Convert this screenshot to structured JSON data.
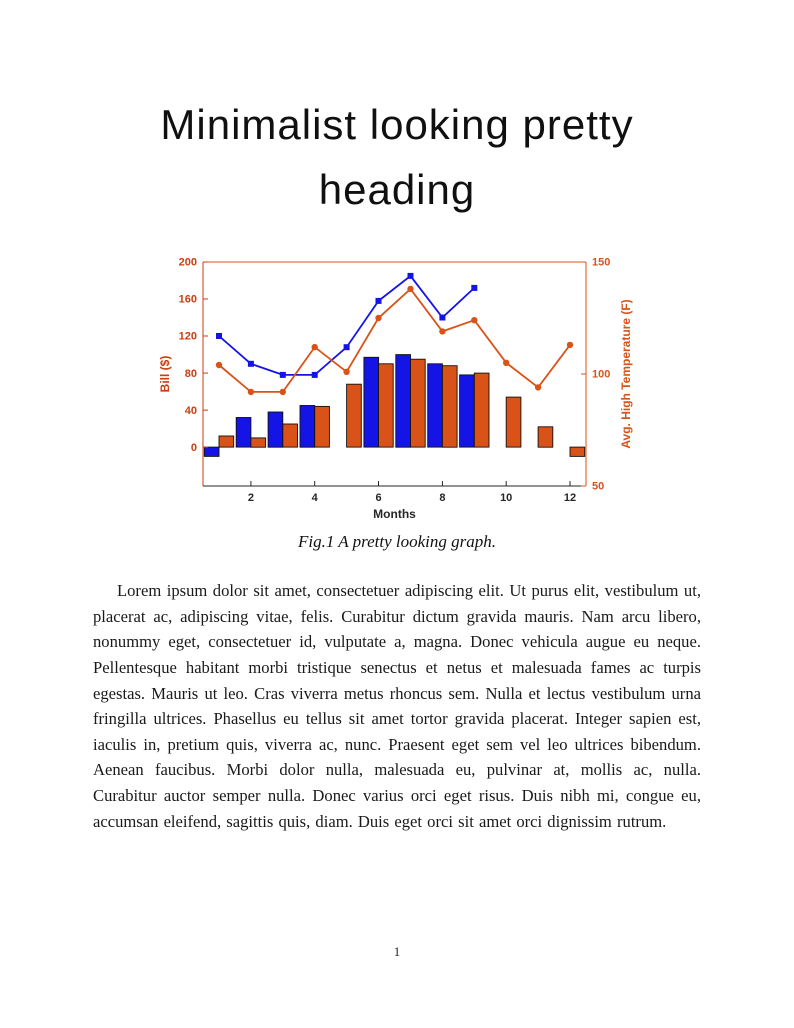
{
  "page": {
    "heading": "Minimalist looking pretty heading",
    "figure_caption": "Fig.1 A pretty looking graph.",
    "body_text": "Lorem ipsum dolor sit amet, consectetuer adipiscing elit. Ut purus elit, vestibulum ut, placerat ac, adipiscing vitae, felis. Curabitur dictum gravida mauris. Nam arcu libero, nonummy eget, consectetuer id, vulputate a, magna. Donec vehicula augue eu neque. Pellentesque habitant morbi tristique senectus et netus et malesuada fames ac turpis egestas. Mauris ut leo. Cras viverra metus rhoncus sem. Nulla et lectus vestibulum urna fringilla ultrices. Phasellus eu tellus sit amet tortor gravida placerat. Integer sapien est, iaculis in, pretium quis, viverra ac, nunc. Praesent eget sem vel leo ultrices bibendum. Aenean faucibus. Morbi dolor nulla, malesuada eu, pulvinar at, mollis ac, nulla. Curabitur auctor semper nulla. Donec varius orci eget risus. Duis nibh mi, congue eu, accumsan eleifend, sagittis quis, diam. Duis eget orci sit amet orci dignissim rutrum.",
    "page_number": "1"
  },
  "chart_data": {
    "type": "combo",
    "title": "",
    "xlabel": "Months",
    "ylabel_left": "Bill ($)",
    "ylabel_right": "Avg. High Temperature (F)",
    "grid": false,
    "legend": false,
    "xlim": [
      0.5,
      12.5
    ],
    "x_ticks": [
      2,
      4,
      6,
      8,
      10,
      12
    ],
    "ylim_left": [
      -42,
      200
    ],
    "y_ticks_left": [
      0,
      40,
      80,
      120,
      160,
      200
    ],
    "ylim_right": [
      50,
      150
    ],
    "y_ticks_right": [
      50,
      100,
      150
    ],
    "months": [
      1,
      2,
      3,
      4,
      5,
      6,
      7,
      8,
      9,
      10,
      11,
      12
    ],
    "bar_width": 0.46,
    "bar_offset": 0.23,
    "series": [
      {
        "name": "bill-bars-blue",
        "type": "bar",
        "axis": "left",
        "color": "#1414e6",
        "values": [
          -10,
          32,
          38,
          45,
          null,
          97,
          100,
          90,
          78,
          null,
          null,
          null
        ]
      },
      {
        "name": "bill-bars-orange",
        "type": "bar",
        "axis": "left",
        "color": "#d95319",
        "values": [
          12,
          10,
          25,
          44,
          68,
          90,
          95,
          88,
          80,
          54,
          22,
          -10
        ]
      },
      {
        "name": "bill-line-blue",
        "type": "line",
        "axis": "left",
        "color": "#1414e6",
        "marker": "square",
        "values": [
          120,
          90,
          78,
          78,
          108,
          158,
          185,
          140,
          172,
          null,
          null,
          null
        ]
      },
      {
        "name": "temp-line-orange",
        "type": "line",
        "axis": "right",
        "color": "#d95319",
        "marker": "circle",
        "values": [
          104,
          92,
          92,
          112,
          101,
          125,
          138,
          119,
          124,
          105,
          94,
          113
        ]
      }
    ],
    "colors": {
      "left_axis": "#cc3d0f",
      "right_axis": "#d95319",
      "x_axis": "#262626",
      "bar_edge": "#101010"
    }
  }
}
